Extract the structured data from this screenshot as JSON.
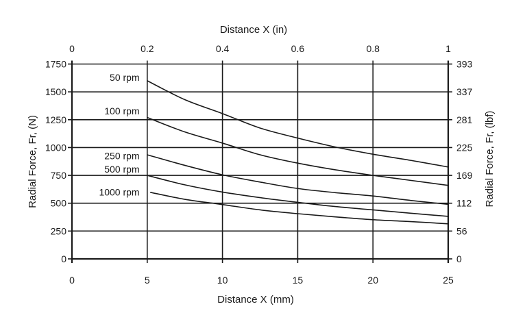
{
  "chart_data": {
    "type": "line",
    "title": "",
    "xlabel": "Distance X (mm)",
    "xlabel_top": "Distance X (in)",
    "ylabel": "Radial Force, Fr, (N)",
    "ylabel_right": "Radial Force, Fr, (lbf)",
    "xlim": [
      0,
      25
    ],
    "ylim": [
      0,
      1750
    ],
    "grid": true,
    "x_ticks": [
      0,
      5,
      10,
      15,
      20,
      25
    ],
    "x_tick_labels": [
      "0",
      "5",
      "10",
      "15",
      "20",
      "25"
    ],
    "x_top_tick_labels": [
      "0",
      "0.2",
      "0.4",
      "0.6",
      "0.8",
      "1"
    ],
    "y_ticks": [
      0,
      250,
      500,
      750,
      1000,
      1250,
      1500,
      1750
    ],
    "y_tick_labels": [
      "0",
      "250",
      "500",
      "750",
      "1000",
      "1250",
      "1500",
      "1750"
    ],
    "y_right_tick_labels": [
      "0",
      "56",
      "112",
      "169",
      "225",
      "281",
      "337",
      "393"
    ],
    "series": [
      {
        "name": "50 rpm",
        "x": [
          5,
          7.5,
          10,
          12.5,
          15,
          17.5,
          20,
          22.5,
          25
        ],
        "values": [
          1600,
          1430,
          1305,
          1175,
          1085,
          1005,
          940,
          885,
          825
        ],
        "label_pos": {
          "x": 4.4,
          "y": 1630
        }
      },
      {
        "name": "100 rpm",
        "x": [
          5,
          7.5,
          10,
          12.5,
          15,
          17.5,
          20,
          22.5,
          25
        ],
        "values": [
          1270,
          1140,
          1040,
          935,
          860,
          800,
          750,
          705,
          660
        ],
        "label_pos": {
          "x": 4.4,
          "y": 1330
        }
      },
      {
        "name": "250 rpm",
        "x": [
          5,
          7.5,
          10,
          12.5,
          15,
          17.5,
          20,
          22.5,
          25
        ],
        "values": [
          935,
          840,
          755,
          690,
          632,
          595,
          565,
          525,
          490
        ],
        "label_pos": {
          "x": 4.4,
          "y": 925
        }
      },
      {
        "name": "500 rpm",
        "x": [
          5,
          7.5,
          10,
          12.5,
          15,
          17.5,
          20,
          22.5,
          25
        ],
        "values": [
          750,
          665,
          600,
          550,
          508,
          470,
          440,
          410,
          382
        ],
        "label_pos": {
          "x": 4.4,
          "y": 807
        }
      },
      {
        "name": "1000 rpm",
        "x": [
          5.2,
          7.5,
          10,
          12.5,
          15,
          17.5,
          20,
          22.5,
          25
        ],
        "values": [
          598,
          535,
          488,
          440,
          406,
          377,
          352,
          335,
          315
        ],
        "label_pos": {
          "x": 4.4,
          "y": 600
        }
      }
    ]
  }
}
